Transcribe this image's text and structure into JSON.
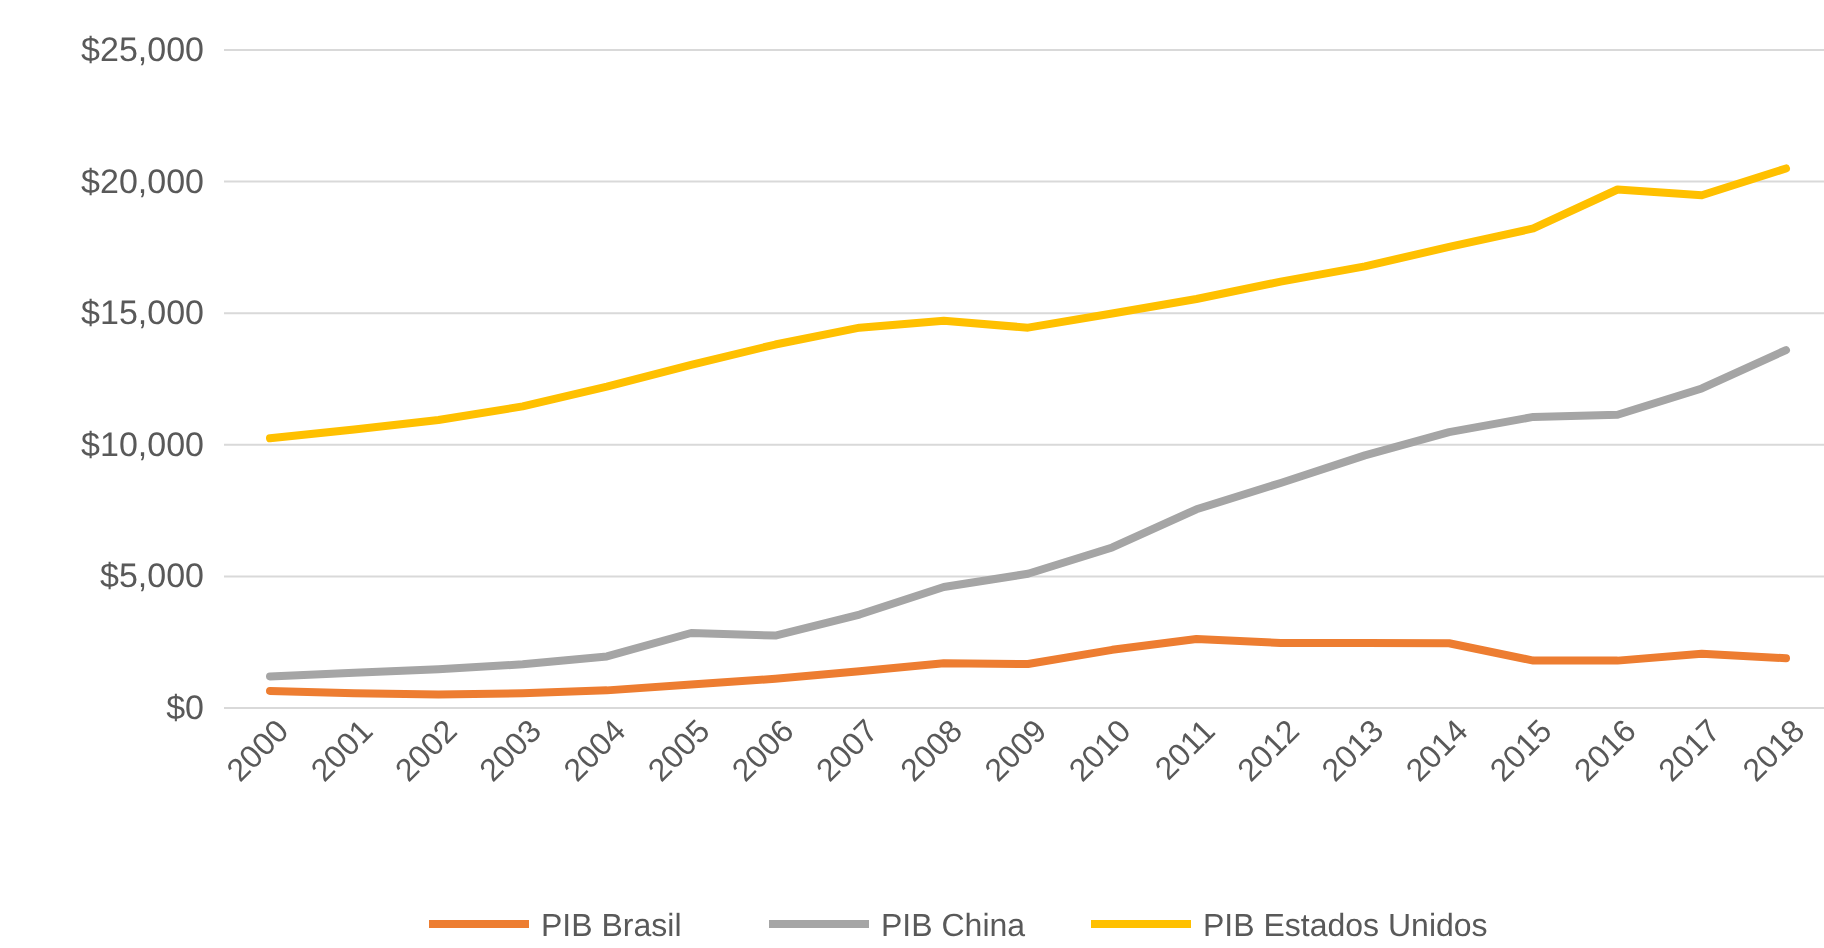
{
  "chart_data": {
    "type": "line",
    "categories": [
      "2000",
      "2001",
      "2002",
      "2003",
      "2004",
      "2005",
      "2006",
      "2007",
      "2008",
      "2009",
      "2010",
      "2011",
      "2012",
      "2013",
      "2014",
      "2015",
      "2016",
      "2017",
      "2018"
    ],
    "series": [
      {
        "name": "PIB Brasil",
        "color": "#ed7d31",
        "values": [
          650,
          560,
          510,
          560,
          670,
          890,
          1110,
          1400,
          1700,
          1670,
          2210,
          2620,
          2470,
          2470,
          2460,
          1800,
          1800,
          2060,
          1890
        ]
      },
      {
        "name": "PIB China",
        "color": "#a5a5a5",
        "values": [
          1200,
          1340,
          1470,
          1660,
          1960,
          2850,
          2750,
          3550,
          4600,
          5100,
          6100,
          7550,
          8550,
          9600,
          10480,
          11060,
          11140,
          12140,
          13600
        ]
      },
      {
        "name": "PIB Estados Unidos",
        "color": "#ffc000",
        "values": [
          10250,
          10580,
          10940,
          11460,
          12210,
          13040,
          13810,
          14450,
          14710,
          14450,
          14990,
          15540,
          16200,
          16780,
          17520,
          18220,
          19700,
          19480,
          20500
        ]
      }
    ],
    "ylim": [
      0,
      25000
    ],
    "yticks": [
      {
        "value": 0,
        "label": "$0"
      },
      {
        "value": 5000,
        "label": "$5,000"
      },
      {
        "value": 10000,
        "label": "$10,000"
      },
      {
        "value": 15000,
        "label": "$15,000"
      },
      {
        "value": 20000,
        "label": "$20,000"
      },
      {
        "value": 25000,
        "label": "$25,000"
      }
    ],
    "grid": "y",
    "legend": "bottom",
    "marker": "none",
    "line_style": "solid"
  }
}
